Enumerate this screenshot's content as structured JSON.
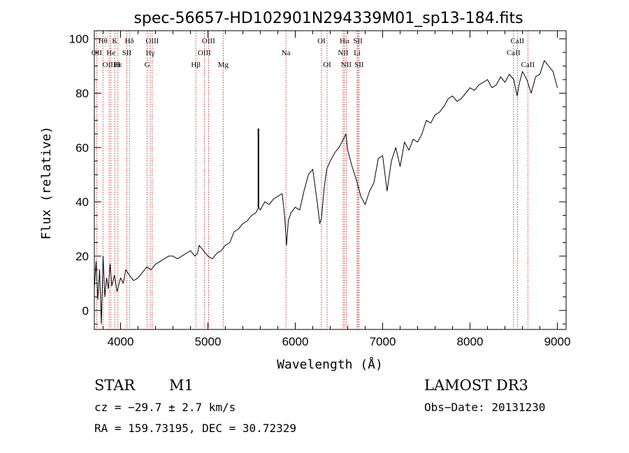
{
  "chart_data": {
    "type": "line",
    "title": "spec-56657-HD102901N294339M01_sp13-184.fits",
    "xlabel": "Wavelength (Å)",
    "ylabel": "Flux (relative)",
    "xlim": [
      3700,
      9100
    ],
    "ylim": [
      -7,
      103
    ],
    "x_ticks": [
      4000,
      5000,
      6000,
      7000,
      8000,
      9000
    ],
    "y_ticks": [
      0,
      20,
      40,
      60,
      80,
      100
    ],
    "grid": false,
    "series": [
      {
        "name": "flux",
        "x": [
          3700,
          3720,
          3740,
          3760,
          3780,
          3800,
          3820,
          3840,
          3860,
          3880,
          3900,
          3930,
          3960,
          4000,
          4030,
          4060,
          4100,
          4150,
          4200,
          4250,
          4300,
          4350,
          4400,
          4450,
          4500,
          4550,
          4600,
          4650,
          4700,
          4750,
          4800,
          4850,
          4880,
          4900,
          4950,
          5000,
          5050,
          5100,
          5150,
          5200,
          5250,
          5300,
          5350,
          5400,
          5450,
          5500,
          5550,
          5580,
          5600,
          5650,
          5700,
          5750,
          5800,
          5850,
          5880,
          5900,
          5920,
          5950,
          6000,
          6050,
          6100,
          6150,
          6200,
          6250,
          6280,
          6300,
          6330,
          6360,
          6400,
          6450,
          6500,
          6550,
          6580,
          6600,
          6650,
          6700,
          6750,
          6800,
          6850,
          6900,
          6950,
          7000,
          7050,
          7100,
          7150,
          7200,
          7250,
          7300,
          7350,
          7400,
          7450,
          7500,
          7550,
          7600,
          7650,
          7700,
          7750,
          7800,
          7850,
          7900,
          7950,
          8000,
          8050,
          8100,
          8150,
          8200,
          8250,
          8300,
          8350,
          8400,
          8450,
          8500,
          8540,
          8560,
          8600,
          8650,
          8700,
          8750,
          8800,
          8850,
          8900,
          8950,
          9000
        ],
        "y": [
          8,
          18,
          4,
          15,
          -5,
          20,
          5,
          12,
          8,
          17,
          9,
          13,
          7,
          12,
          10,
          15,
          13,
          11,
          12,
          14,
          16,
          15,
          17,
          18,
          19,
          20,
          20,
          19,
          20,
          21,
          22,
          20,
          21,
          24,
          22,
          20,
          19,
          21,
          22,
          24,
          25,
          29,
          30,
          32,
          33,
          35,
          36,
          38,
          37,
          40,
          39,
          41,
          42,
          43,
          34,
          24,
          33,
          36,
          38,
          37,
          44,
          50,
          52,
          40,
          32,
          34,
          45,
          52,
          55,
          58,
          60,
          63,
          65,
          59,
          53,
          48,
          42,
          39,
          44,
          47,
          56,
          57,
          44,
          55,
          60,
          53,
          62,
          59,
          63,
          62,
          65,
          70,
          69,
          72,
          73,
          75,
          78,
          79,
          77,
          78,
          80,
          82,
          81,
          83,
          84,
          85,
          82,
          83,
          86,
          84,
          87,
          85,
          79,
          83,
          88,
          85,
          80,
          86,
          87,
          92,
          90,
          88,
          82
        ]
      }
    ],
    "spike": {
      "x": 5578,
      "y": 67
    },
    "emission_lines": [
      {
        "label": "Hθ",
        "x": 3798,
        "row": 0
      },
      {
        "label": "K",
        "x": 3934,
        "row": 0
      },
      {
        "label": "Hδ",
        "x": 4102,
        "row": 0
      },
      {
        "label": "OIII",
        "x": 4363,
        "row": 0
      },
      {
        "label": "OIII",
        "x": 5007,
        "row": 0
      },
      {
        "label": "OI",
        "x": 6300,
        "row": 0
      },
      {
        "label": "Hα",
        "x": 6563,
        "row": 0
      },
      {
        "label": "SII",
        "x": 6717,
        "row": 0
      },
      {
        "label": "CaII",
        "x": 8542,
        "row": 0
      },
      {
        "label": "OII",
        "x": 3727,
        "row": 1
      },
      {
        "label": "He",
        "x": 3889,
        "row": 1
      },
      {
        "label": "SII",
        "x": 4072,
        "row": 1
      },
      {
        "label": "Hγ",
        "x": 4340,
        "row": 1
      },
      {
        "label": "OIII",
        "x": 4959,
        "row": 1
      },
      {
        "label": "Na",
        "x": 5893,
        "row": 1
      },
      {
        "label": "NII",
        "x": 6548,
        "row": 1
      },
      {
        "label": "Li",
        "x": 6708,
        "row": 1
      },
      {
        "label": "CaII",
        "x": 8498,
        "row": 1
      },
      {
        "label": "OIII",
        "x": 3869,
        "row": 2
      },
      {
        "label": "Hε",
        "x": 3970,
        "row": 2
      },
      {
        "label": "H",
        "x": 3968,
        "row": 2
      },
      {
        "label": "G",
        "x": 4305,
        "row": 2
      },
      {
        "label": "Hβ",
        "x": 4861,
        "row": 2
      },
      {
        "label": "Mg",
        "x": 5175,
        "row": 2
      },
      {
        "label": "OI",
        "x": 6364,
        "row": 2
      },
      {
        "label": "NII",
        "x": 6583,
        "row": 2
      },
      {
        "label": "SII",
        "x": 6731,
        "row": 2
      },
      {
        "label": "CaII",
        "x": 8662,
        "row": 2
      }
    ]
  },
  "info": {
    "object_class": "STAR",
    "subclass": "M1",
    "survey": "LAMOST DR3",
    "cz": "cz = −29.7 ± 2.7 km/s",
    "obs_date": "Obs−Date: 20131230",
    "coords": "RA = 159.73195, DEC =  30.72329"
  },
  "colors": {
    "line_marker": "#cc0000",
    "spectrum": "#000000"
  }
}
